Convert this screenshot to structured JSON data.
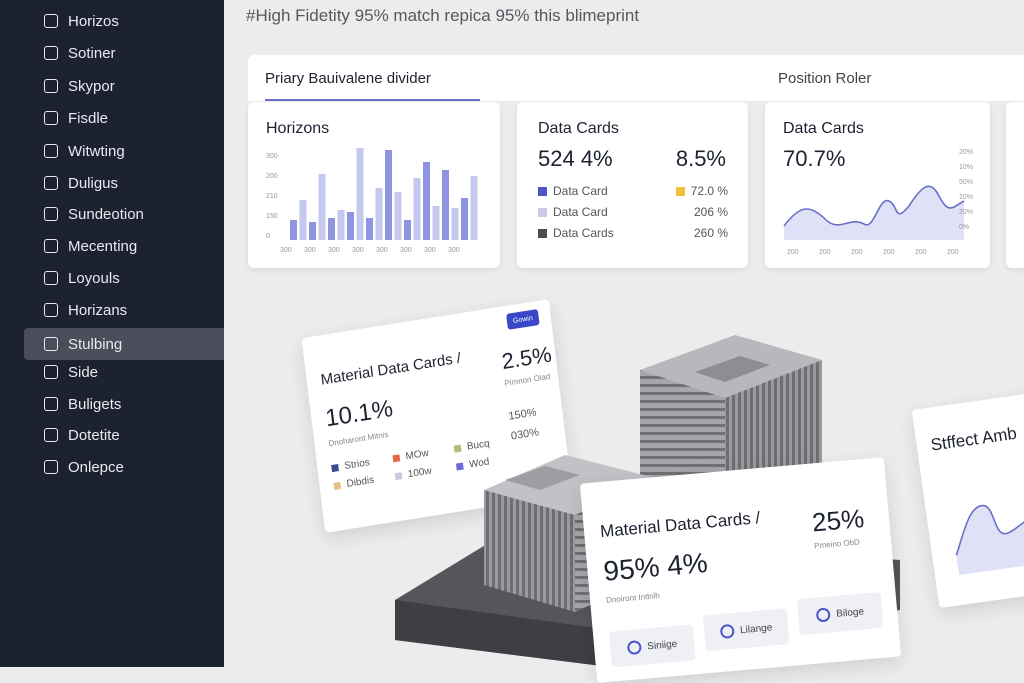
{
  "header": {
    "title": "#High Fidetity 95% match repica 95% this blimeprint"
  },
  "sidebar": {
    "items": [
      "Horizos",
      "Sotiner",
      "Skypor",
      "Fisdle",
      "Witwting",
      "Duligus",
      "Sundeotion",
      "Mecenting",
      "Loyouls",
      "Horizans",
      "Stulbing",
      "Side",
      "Buligets",
      "Dotetite",
      "Onlepce"
    ],
    "active": 10
  },
  "topbar": {
    "tab": "Priary Bauivalene divider",
    "right": "Position Roler"
  },
  "cards": [
    {
      "title": "Horizons",
      "y_labels": [
        "300",
        "200",
        "210",
        "150",
        "0"
      ],
      "x_labels": [
        "300",
        "300",
        "300",
        "300",
        "300",
        "300",
        "300",
        "300"
      ]
    },
    {
      "title": "Data Cards",
      "primary": "524 4%",
      "secondary": "8.5%",
      "legend": [
        {
          "label": "Data Card",
          "value": "72.0 %",
          "color": "#4b55c8"
        },
        {
          "label": "Data Card",
          "value": "206 %",
          "color": "#c9cbe6"
        },
        {
          "label": "Data Cards",
          "value": "260 %",
          "color": "#4a4f4c"
        }
      ]
    },
    {
      "title": "Data Cards",
      "primary": "70.7%",
      "y_labels": [
        "20%",
        "10%",
        "50%",
        "10%",
        "20%",
        "0%"
      ],
      "x_labels": [
        "200",
        "200",
        "200",
        "200",
        "200",
        "200"
      ]
    }
  ],
  "floating": [
    {
      "title": "Material Data Cards /",
      "primary": "10.1%",
      "caption": "Dnoharont Mitnis",
      "secondary": "2.5%",
      "secondary_caption": "Pimnon Olad",
      "badge": "Gowin",
      "legend": [
        {
          "label": "Strios",
          "color": "#3a4a8a"
        },
        {
          "label": "Dibdis",
          "color": "#e8c08a"
        },
        {
          "label": "MOw",
          "color": "#e06a4a"
        },
        {
          "label": "100w",
          "color": "#c8cbe0"
        },
        {
          "label": "Bucq",
          "color": "#a8c070"
        },
        {
          "label": "Wod",
          "color": "#6a6ad8"
        }
      ],
      "values": [
        "150%",
        "030%"
      ]
    },
    {
      "title": "Material Data Cards /",
      "primary": "95% 4%",
      "caption": "Dnoiront Intlnlh",
      "secondary": "25%",
      "secondary_caption": "Pmeino ObD",
      "buttons": [
        "Siniige",
        "Lilange",
        "Biloge"
      ]
    },
    {
      "title": "Stffect Amb"
    }
  ]
}
